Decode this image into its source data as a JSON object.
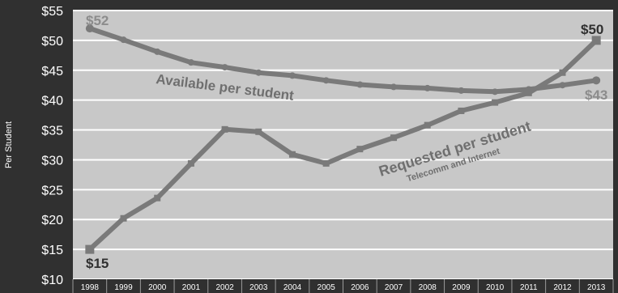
{
  "chart_data": {
    "type": "line",
    "ylabel": "Per Student",
    "ylim": [
      10,
      55
    ],
    "yticks": [
      "$10",
      "$15",
      "$20",
      "$25",
      "$30",
      "$35",
      "$40",
      "$45",
      "$50",
      "$55"
    ],
    "x": [
      "1998",
      "1999",
      "2000",
      "2001",
      "2002",
      "2003",
      "2004",
      "2005",
      "2006",
      "2007",
      "2008",
      "2009",
      "2010",
      "2011",
      "2012",
      "2013"
    ],
    "series": [
      {
        "name": "Available per student",
        "values": [
          52,
          50.1,
          48.1,
          46.3,
          45.5,
          44.6,
          44.1,
          43.3,
          42.6,
          42.2,
          42.0,
          41.6,
          41.4,
          41.8,
          42.5,
          43.3
        ]
      },
      {
        "name": "Requested per student",
        "values": [
          15,
          20.2,
          23.6,
          29.4,
          35.1,
          34.7,
          30.9,
          29.4,
          31.8,
          33.7,
          35.8,
          38.2,
          39.6,
          41.2,
          44.6,
          50
        ]
      }
    ],
    "annotations": {
      "available_label": "Available per student",
      "requested_label": "Requested per student",
      "requested_sublabel": "Telecomm and Internet",
      "avail_start": "$52",
      "avail_end": "$43",
      "req_start": "$15",
      "req_end": "$50"
    },
    "colors": {
      "background": "#303030",
      "plot": "#c8c8c8",
      "line": "#7a7a7a",
      "grid": "#ffffff"
    },
    "grid": true
  }
}
